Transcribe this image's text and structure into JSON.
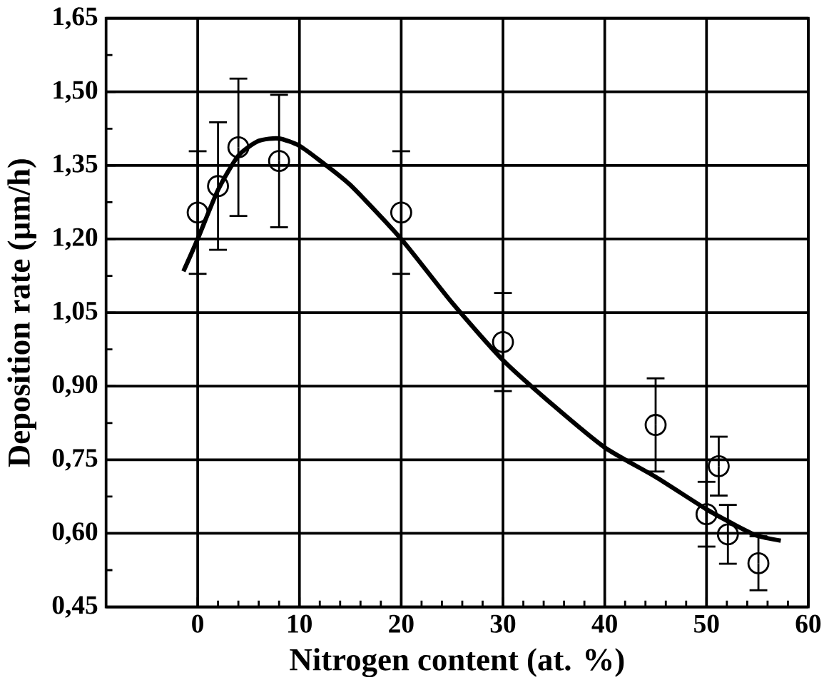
{
  "chart_data": {
    "type": "scatter",
    "xlabel": "Nitrogen content (at. %)",
    "ylabel": "Deposition rate (µm/h)",
    "xlim": [
      -9,
      60
    ],
    "ylim": [
      0.45,
      1.65
    ],
    "xticks": [
      0,
      10,
      20,
      30,
      40,
      50,
      60
    ],
    "yticks": [
      {
        "value": 0.45,
        "label": "0,45"
      },
      {
        "value": 0.6,
        "label": "0,60"
      },
      {
        "value": 0.75,
        "label": "0,75"
      },
      {
        "value": 0.9,
        "label": "0,90"
      },
      {
        "value": 1.05,
        "label": "1,05"
      },
      {
        "value": 1.2,
        "label": "1,20"
      },
      {
        "value": 1.35,
        "label": "1,35"
      },
      {
        "value": 1.5,
        "label": "1,50"
      },
      {
        "value": 1.65,
        "label": "1,65"
      }
    ],
    "grid": true,
    "series": [
      {
        "color": "#000000",
        "marker": "circle",
        "x": [
          0,
          2,
          4,
          8,
          20,
          30,
          45,
          50,
          51.2,
          52.1,
          55.1
        ],
        "values": [
          1.254,
          1.308,
          1.387,
          1.359,
          1.254,
          0.99,
          0.821,
          0.639,
          0.737,
          0.598,
          0.539
        ],
        "errors": [
          0.125,
          0.13,
          0.14,
          0.135,
          0.125,
          0.1,
          0.095,
          0.066,
          0.06,
          0.06,
          0.055
        ]
      },
      {
        "type": "line",
        "color": "#000000",
        "marker": "none",
        "x": [
          -1.4,
          0,
          2,
          4,
          6,
          8,
          10,
          12,
          15,
          20,
          25,
          30,
          35,
          40,
          45,
          50,
          53,
          55,
          57.3
        ],
        "values": [
          1.134,
          1.2,
          1.3,
          1.37,
          1.4,
          1.405,
          1.39,
          1.36,
          1.31,
          1.2,
          1.07,
          0.953,
          0.86,
          0.775,
          0.715,
          0.649,
          0.615,
          0.595,
          0.585
        ]
      }
    ]
  }
}
